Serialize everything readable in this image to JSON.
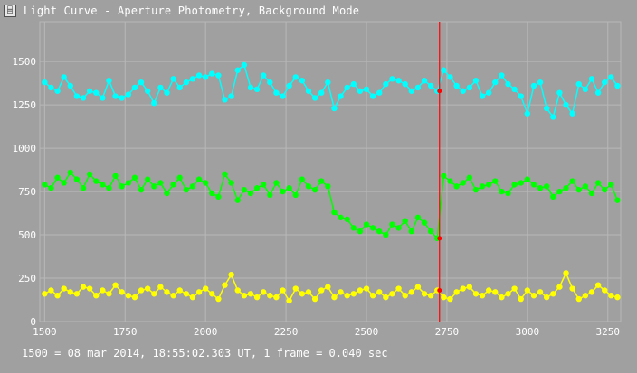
{
  "window": {
    "title": "Light Curve - Aperture Photometry, Background Mode",
    "icon": "light-curve-app-icon"
  },
  "status": {
    "text": "1500 = 08 mar 2014, 18:55:02.303 UT, 1 frame = 0.040 sec"
  },
  "colors": {
    "background": "#a0a0a0",
    "grid": "#b8b8b8",
    "cursor": "#ff0000",
    "marker": "#ff0000"
  },
  "chart_data": {
    "type": "scatter",
    "title": "",
    "xlabel": "",
    "ylabel": "",
    "xlim": [
      1485,
      3290
    ],
    "ylim": [
      0,
      1730
    ],
    "grid": true,
    "legend": "none",
    "x_ticks": [
      1500,
      1750,
      2000,
      2250,
      2500,
      2750,
      3000,
      3250
    ],
    "y_ticks": [
      0,
      250,
      500,
      750,
      1000,
      1250,
      1500
    ],
    "cursor_x": 2727,
    "series": [
      {
        "color": "#00ffff",
        "x": [
          1500,
          1520,
          1540,
          1560,
          1580,
          1600,
          1620,
          1640,
          1660,
          1680,
          1700,
          1720,
          1740,
          1760,
          1780,
          1800,
          1820,
          1840,
          1860,
          1880,
          1900,
          1920,
          1940,
          1960,
          1980,
          2000,
          2020,
          2040,
          2060,
          2080,
          2100,
          2120,
          2140,
          2160,
          2180,
          2200,
          2220,
          2240,
          2260,
          2280,
          2300,
          2320,
          2340,
          2360,
          2380,
          2400,
          2420,
          2440,
          2460,
          2480,
          2500,
          2520,
          2540,
          2560,
          2580,
          2600,
          2620,
          2640,
          2660,
          2680,
          2700,
          2720,
          2740,
          2760,
          2780,
          2800,
          2820,
          2840,
          2860,
          2880,
          2900,
          2920,
          2940,
          2960,
          2980,
          3000,
          3020,
          3040,
          3060,
          3080,
          3100,
          3120,
          3140,
          3160,
          3180,
          3200,
          3220,
          3240,
          3260,
          3280
        ],
        "y": [
          1380,
          1350,
          1330,
          1410,
          1360,
          1300,
          1290,
          1330,
          1320,
          1290,
          1390,
          1300,
          1290,
          1310,
          1350,
          1380,
          1330,
          1260,
          1350,
          1320,
          1400,
          1350,
          1380,
          1400,
          1420,
          1410,
          1430,
          1420,
          1280,
          1300,
          1450,
          1480,
          1350,
          1340,
          1420,
          1380,
          1320,
          1300,
          1360,
          1410,
          1390,
          1330,
          1290,
          1320,
          1380,
          1230,
          1300,
          1350,
          1370,
          1330,
          1340,
          1300,
          1320,
          1370,
          1400,
          1390,
          1370,
          1330,
          1350,
          1390,
          1360,
          1330,
          1450,
          1410,
          1360,
          1330,
          1350,
          1390,
          1300,
          1320,
          1380,
          1420,
          1370,
          1340,
          1300,
          1200,
          1360,
          1380,
          1230,
          1180,
          1320,
          1250,
          1200,
          1370,
          1340,
          1400,
          1320,
          1380,
          1410,
          1360
        ]
      },
      {
        "color": "#00ff00",
        "x": [
          1500,
          1520,
          1540,
          1560,
          1580,
          1600,
          1620,
          1640,
          1660,
          1680,
          1700,
          1720,
          1740,
          1760,
          1780,
          1800,
          1820,
          1840,
          1860,
          1880,
          1900,
          1920,
          1940,
          1960,
          1980,
          2000,
          2020,
          2040,
          2060,
          2080,
          2100,
          2120,
          2140,
          2160,
          2180,
          2200,
          2220,
          2240,
          2260,
          2280,
          2300,
          2320,
          2340,
          2360,
          2380,
          2400,
          2420,
          2440,
          2460,
          2480,
          2500,
          2520,
          2540,
          2560,
          2580,
          2600,
          2620,
          2640,
          2660,
          2680,
          2700,
          2720,
          2740,
          2760,
          2780,
          2800,
          2820,
          2840,
          2860,
          2880,
          2900,
          2920,
          2940,
          2960,
          2980,
          3000,
          3020,
          3040,
          3060,
          3080,
          3100,
          3120,
          3140,
          3160,
          3180,
          3200,
          3220,
          3240,
          3260,
          3280
        ],
        "y": [
          790,
          770,
          830,
          800,
          860,
          820,
          770,
          850,
          810,
          790,
          770,
          840,
          780,
          800,
          830,
          760,
          820,
          780,
          800,
          740,
          790,
          830,
          760,
          780,
          820,
          800,
          740,
          720,
          850,
          800,
          700,
          760,
          740,
          770,
          790,
          730,
          800,
          750,
          770,
          730,
          820,
          780,
          760,
          810,
          780,
          630,
          600,
          590,
          540,
          520,
          560,
          540,
          520,
          500,
          560,
          540,
          580,
          520,
          600,
          570,
          520,
          480,
          840,
          810,
          780,
          800,
          830,
          760,
          780,
          790,
          810,
          750,
          740,
          790,
          800,
          820,
          790,
          770,
          780,
          720,
          750,
          770,
          810,
          760,
          780,
          740,
          800,
          760,
          790,
          700
        ]
      },
      {
        "color": "#ffff00",
        "x": [
          1500,
          1520,
          1540,
          1560,
          1580,
          1600,
          1620,
          1640,
          1660,
          1680,
          1700,
          1720,
          1740,
          1760,
          1780,
          1800,
          1820,
          1840,
          1860,
          1880,
          1900,
          1920,
          1940,
          1960,
          1980,
          2000,
          2020,
          2040,
          2060,
          2080,
          2100,
          2120,
          2140,
          2160,
          2180,
          2200,
          2220,
          2240,
          2260,
          2280,
          2300,
          2320,
          2340,
          2360,
          2380,
          2400,
          2420,
          2440,
          2460,
          2480,
          2500,
          2520,
          2540,
          2560,
          2580,
          2600,
          2620,
          2640,
          2660,
          2680,
          2700,
          2720,
          2740,
          2760,
          2780,
          2800,
          2820,
          2840,
          2860,
          2880,
          2900,
          2920,
          2940,
          2960,
          2980,
          3000,
          3020,
          3040,
          3060,
          3080,
          3100,
          3120,
          3140,
          3160,
          3180,
          3200,
          3220,
          3240,
          3260,
          3280
        ],
        "y": [
          160,
          180,
          150,
          190,
          170,
          160,
          200,
          190,
          150,
          180,
          160,
          210,
          170,
          150,
          140,
          180,
          190,
          160,
          200,
          170,
          150,
          180,
          160,
          140,
          170,
          190,
          160,
          130,
          210,
          270,
          180,
          150,
          160,
          140,
          170,
          150,
          140,
          180,
          120,
          190,
          160,
          170,
          130,
          180,
          200,
          140,
          170,
          150,
          160,
          180,
          190,
          150,
          170,
          140,
          160,
          190,
          150,
          170,
          200,
          160,
          150,
          180,
          140,
          130,
          170,
          190,
          200,
          160,
          150,
          180,
          170,
          140,
          160,
          190,
          130,
          180,
          150,
          170,
          140,
          160,
          200,
          280,
          190,
          130,
          150,
          170,
          210,
          180,
          150,
          140
        ]
      }
    ]
  }
}
